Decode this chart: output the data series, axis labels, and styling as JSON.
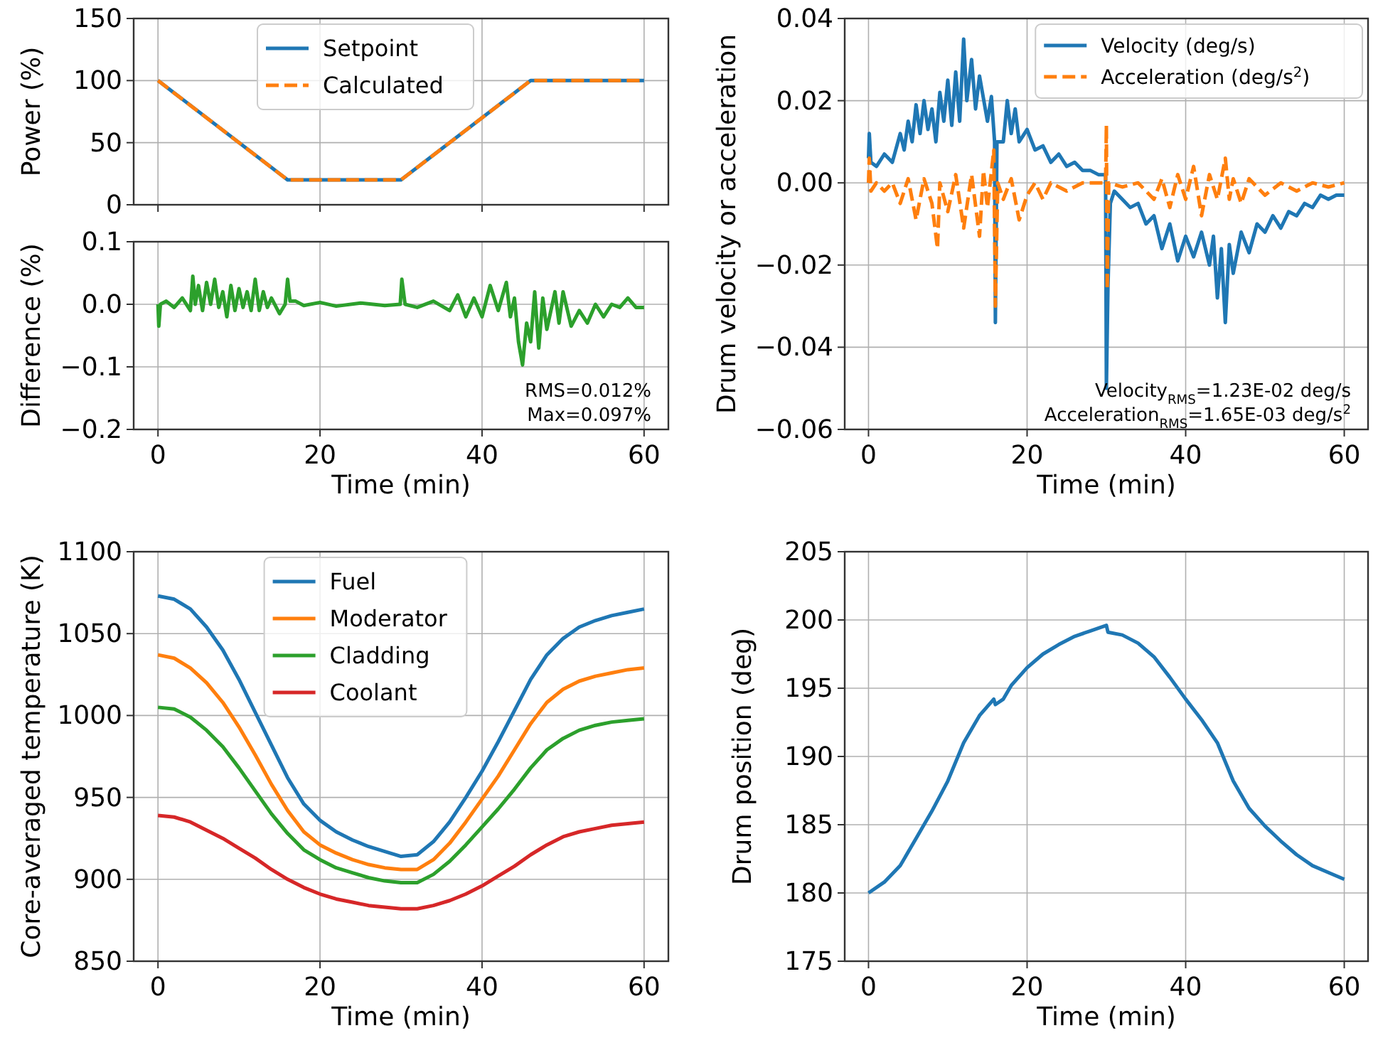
{
  "chart_data": [
    {
      "type": "line",
      "ylabel": "Power (%)",
      "xlim": [
        -3,
        63
      ],
      "xticks": [
        {
          "value": 0,
          "label": null
        },
        {
          "value": 20,
          "label": null
        },
        {
          "value": 40,
          "label": null
        },
        {
          "value": 60,
          "label": null
        }
      ],
      "ylim": [
        0,
        150
      ],
      "yticks": [
        0,
        50,
        100,
        150
      ],
      "tick_labels": "y",
      "grid": true,
      "legend": "top",
      "series": [
        {
          "name": "Setpoint",
          "color": "#1f77b4",
          "line_style": "solid",
          "x": [
            0,
            16,
            30,
            46,
            60
          ],
          "values": [
            100,
            20,
            20,
            100,
            100
          ]
        },
        {
          "name": "Calculated",
          "color": "#ff7f0e",
          "line_style": "dashed",
          "x": [
            0,
            16,
            30,
            46,
            60
          ],
          "values": [
            100,
            20,
            20,
            100,
            100
          ]
        }
      ]
    },
    {
      "type": "line",
      "xlabel": "Time (min)",
      "ylabel": "Difference (%)",
      "xlim": [
        -3,
        63
      ],
      "xticks": [
        0,
        20,
        40,
        60
      ],
      "ylim": [
        -0.2,
        0.1
      ],
      "yticks": [
        {
          "value": -0.2,
          "label": "−0.2"
        },
        {
          "value": -0.1,
          "label": "−0.1"
        },
        {
          "value": 0,
          "label": "0.0"
        },
        {
          "value": 0.1,
          "label": "0.1"
        }
      ],
      "grid": true,
      "annotations": [
        "RMS=0.012%",
        "Max=0.097%"
      ],
      "series": [
        {
          "color": "#2ca02c",
          "line_style": "solid",
          "x": [
            0,
            0.1,
            0.3,
            1,
            2,
            3,
            4,
            4.3,
            4.6,
            5,
            5.5,
            6,
            6.5,
            7,
            7.5,
            8,
            8.5,
            9,
            9.5,
            10,
            10.5,
            11,
            11.5,
            12,
            12.5,
            13,
            13.5,
            14,
            15,
            15.7,
            16,
            16.3,
            17,
            18,
            20,
            22,
            25,
            28,
            29.9,
            30.1,
            30.5,
            32,
            34,
            36,
            37,
            38,
            39,
            40,
            41,
            42,
            43,
            43.5,
            44,
            44.5,
            45,
            45.5,
            46,
            46.5,
            47,
            47.5,
            48,
            49,
            49.5,
            50,
            51,
            52,
            53,
            54,
            55,
            56,
            57,
            58,
            59,
            60
          ],
          "values": [
            0,
            -0.035,
            0,
            0.005,
            -0.005,
            0.01,
            -0.01,
            0.045,
            0,
            0.03,
            -0.01,
            0.035,
            0,
            0.04,
            -0.005,
            0.02,
            -0.02,
            0.03,
            -0.01,
            0.025,
            -0.005,
            0.02,
            -0.01,
            0.04,
            -0.01,
            0.02,
            -0.005,
            0.01,
            -0.015,
            0,
            0.04,
            0.005,
            0.005,
            -0.002,
            0.003,
            -0.003,
            0.002,
            -0.002,
            0,
            0.04,
            0,
            -0.005,
            0.005,
            -0.01,
            0.015,
            -0.02,
            0.01,
            -0.02,
            0.03,
            -0.01,
            0.035,
            -0.02,
            0.01,
            -0.06,
            -0.097,
            -0.03,
            -0.06,
            0.02,
            -0.07,
            0.01,
            -0.04,
            0.02,
            -0.03,
            0.02,
            -0.035,
            -0.01,
            -0.03,
            0,
            -0.02,
            0,
            -0.005,
            0.01,
            -0.005,
            -0.005
          ]
        }
      ]
    },
    {
      "type": "line",
      "xlabel": "Time (min)",
      "ylabel": "Drum velocity or acceleration",
      "xlim": [
        -3,
        63
      ],
      "xticks": [
        0,
        20,
        40,
        60
      ],
      "ylim": [
        -0.06,
        0.04
      ],
      "yticks": [
        {
          "value": -0.06,
          "label": "−0.06"
        },
        {
          "value": -0.04,
          "label": "−0.04"
        },
        {
          "value": -0.02,
          "label": "−0.02"
        },
        {
          "value": 0,
          "label": "0.00"
        },
        {
          "value": 0.02,
          "label": "0.02"
        },
        {
          "value": 0.04,
          "label": "0.04"
        }
      ],
      "grid": true,
      "legend": "top right",
      "annotations": [
        "Velocity$_{RMS}$=1.23E-02 deg/s",
        "Acceleration$_{RMS}$=1.65E-03 deg/s$^{2}$"
      ],
      "series": [
        {
          "name": "Velocity (deg/s)",
          "color": "#1f77b4",
          "line_style": "solid",
          "x": [
            0,
            0.1,
            0.3,
            1,
            2,
            3,
            4,
            4.5,
            5,
            5.5,
            6,
            6.5,
            7,
            7.5,
            8,
            8.5,
            9,
            9.5,
            10,
            10.5,
            11,
            11.5,
            12,
            12.4,
            13,
            13.5,
            14,
            15,
            15.5,
            15.9,
            16,
            16.2,
            17,
            17.5,
            18,
            18.5,
            19,
            20,
            21,
            22,
            23,
            24,
            25,
            26,
            27,
            28,
            29,
            29.9,
            30,
            30.2,
            30.5,
            31,
            32,
            33,
            34,
            35,
            36,
            37,
            38,
            39,
            40,
            41,
            42,
            43,
            43.5,
            44,
            44.5,
            45,
            45.5,
            46,
            47,
            48,
            49,
            50,
            51,
            52,
            53,
            54,
            55,
            56,
            57,
            58,
            59,
            60
          ],
          "values": [
            0.006,
            0.012,
            0.005,
            0.004,
            0.007,
            0.005,
            0.012,
            0.008,
            0.015,
            0.01,
            0.019,
            0.012,
            0.02,
            0.013,
            0.018,
            0.01,
            0.022,
            0.015,
            0.025,
            0.014,
            0.027,
            0.015,
            0.035,
            0.02,
            0.03,
            0.018,
            0.026,
            0.015,
            0.021,
            0.01,
            -0.034,
            0.01,
            0.01,
            0.02,
            0.012,
            0.018,
            0.01,
            0.013,
            0.008,
            0.009,
            0.005,
            0.007,
            0.004,
            0.005,
            0.003,
            0.003,
            0.002,
            0.002,
            -0.05,
            -0.025,
            -0.005,
            -0.002,
            -0.004,
            -0.006,
            -0.005,
            -0.01,
            -0.008,
            -0.016,
            -0.01,
            -0.019,
            -0.013,
            -0.018,
            -0.012,
            -0.02,
            -0.013,
            -0.028,
            -0.016,
            -0.034,
            -0.015,
            -0.022,
            -0.012,
            -0.017,
            -0.01,
            -0.012,
            -0.008,
            -0.011,
            -0.007,
            -0.008,
            -0.005,
            -0.006,
            -0.003,
            -0.004,
            -0.003,
            -0.003
          ]
        },
        {
          "name": "Acceleration (deg/s$^{2}$)",
          "color": "#ff7f0e",
          "line_style": "dashed",
          "x": [
            0,
            0.1,
            0.3,
            1,
            2,
            3,
            4,
            5,
            6,
            7,
            8,
            8.7,
            9,
            10,
            11,
            12,
            13,
            14,
            14.5,
            15,
            15.8,
            16,
            16.3,
            17,
            18,
            19,
            20,
            21,
            22,
            23,
            25,
            27,
            29.9,
            30,
            30.1,
            30.3,
            32,
            34,
            36,
            37,
            38,
            39,
            40,
            41,
            42,
            43,
            44,
            45,
            45.5,
            46,
            47,
            48,
            50,
            52,
            54,
            56,
            58,
            60
          ],
          "values": [
            0,
            0.006,
            -0.002,
            0,
            -0.002,
            0,
            -0.005,
            0.001,
            -0.009,
            0.001,
            -0.005,
            -0.016,
            0,
            -0.007,
            0.002,
            -0.011,
            0.002,
            -0.013,
            0.003,
            -0.006,
            0.008,
            -0.03,
            0,
            -0.004,
            0.001,
            -0.009,
            -0.003,
            0,
            -0.004,
            0,
            -0.002,
            0,
            0,
            0.014,
            -0.026,
            0,
            -0.001,
            0,
            -0.004,
            0.001,
            -0.006,
            0.002,
            -0.004,
            0.004,
            -0.008,
            0.002,
            -0.004,
            0.006,
            -0.004,
            0.001,
            -0.005,
            0.001,
            -0.003,
            0,
            -0.002,
            0,
            -0.001,
            0
          ]
        }
      ]
    },
    {
      "type": "line",
      "xlabel": "Time (min)",
      "ylabel": "Core-averaged temperature (K)",
      "xlim": [
        -3,
        63
      ],
      "xticks": [
        0,
        20,
        40,
        60
      ],
      "ylim": [
        850,
        1100
      ],
      "yticks": [
        850,
        900,
        950,
        1000,
        1050,
        1100
      ],
      "grid": true,
      "legend": "top",
      "x": [
        0,
        2,
        4,
        6,
        8,
        10,
        12,
        14,
        16,
        18,
        20,
        22,
        24,
        26,
        28,
        30,
        32,
        34,
        36,
        38,
        40,
        42,
        44,
        46,
        48,
        50,
        52,
        54,
        56,
        58,
        60
      ],
      "series": [
        {
          "name": "Fuel",
          "color": "#1f77b4",
          "values": [
            1073,
            1071,
            1065,
            1054,
            1040,
            1022,
            1002,
            982,
            962,
            946,
            936,
            929,
            924,
            920,
            917,
            914,
            915,
            923,
            935,
            950,
            966,
            984,
            1003,
            1022,
            1037,
            1047,
            1054,
            1058,
            1061,
            1063,
            1065
          ]
        },
        {
          "name": "Moderator",
          "color": "#ff7f0e",
          "values": [
            1037,
            1035,
            1029,
            1020,
            1008,
            993,
            976,
            958,
            942,
            929,
            921,
            916,
            912,
            909,
            907,
            906,
            906,
            912,
            922,
            935,
            949,
            963,
            979,
            995,
            1008,
            1016,
            1021,
            1024,
            1026,
            1028,
            1029
          ]
        },
        {
          "name": "Cladding",
          "color": "#2ca02c",
          "values": [
            1005,
            1004,
            999,
            991,
            981,
            968,
            954,
            940,
            928,
            918,
            912,
            907,
            904,
            901,
            899,
            898,
            898,
            903,
            911,
            921,
            932,
            943,
            955,
            968,
            979,
            986,
            991,
            994,
            996,
            997,
            998
          ]
        },
        {
          "name": "Coolant",
          "color": "#d62728",
          "values": [
            939,
            938,
            935,
            930,
            925,
            919,
            913,
            906,
            900,
            895,
            891,
            888,
            886,
            884,
            883,
            882,
            882,
            884,
            887,
            891,
            896,
            902,
            908,
            915,
            921,
            926,
            929,
            931,
            933,
            934,
            935
          ]
        }
      ]
    },
    {
      "type": "line",
      "xlabel": "Time (min)",
      "ylabel": "Drum position (deg)",
      "xlim": [
        -3,
        63
      ],
      "xticks": [
        0,
        20,
        40,
        60
      ],
      "ylim": [
        175,
        205
      ],
      "yticks": [
        175,
        180,
        185,
        190,
        195,
        200,
        205
      ],
      "grid": true,
      "series": [
        {
          "color": "#1f77b4",
          "x": [
            0,
            2,
            4,
            6,
            8,
            10,
            12,
            14,
            15.8,
            16,
            17,
            18,
            20,
            22,
            24,
            26,
            28,
            30,
            30.2,
            32,
            34,
            36,
            38,
            40,
            42,
            44,
            46,
            48,
            50,
            52,
            54,
            56,
            58,
            60
          ],
          "values": [
            180,
            180.8,
            182,
            184,
            186,
            188.2,
            191,
            193,
            194.2,
            193.8,
            194.2,
            195.2,
            196.5,
            197.5,
            198.2,
            198.8,
            199.2,
            199.6,
            199.1,
            198.9,
            198.3,
            197.3,
            195.8,
            194.2,
            192.7,
            191,
            188.2,
            186.2,
            184.9,
            183.8,
            182.8,
            182,
            181.5,
            181
          ]
        }
      ]
    }
  ]
}
